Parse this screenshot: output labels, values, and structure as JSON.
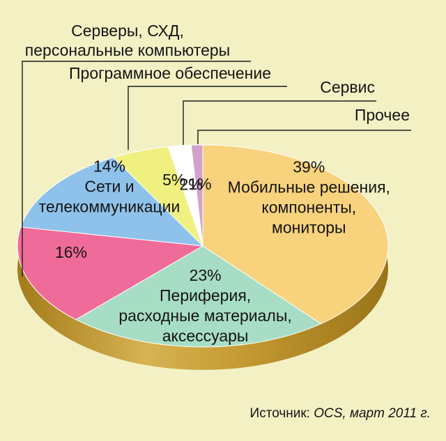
{
  "chart_data": {
    "type": "pie",
    "slices": [
      {
        "pct_label": "39%",
        "label_lines": [
          "Мобильные решения,",
          "компоненты,",
          "мониторы"
        ],
        "value": 39,
        "color": "#f8d27d"
      },
      {
        "pct_label": "23%",
        "label_lines": [
          "Периферия,",
          "расходные материалы,",
          "аксессуары"
        ],
        "value": 23,
        "color": "#a7ddc5"
      },
      {
        "pct_label": "16%",
        "label_lines": [],
        "value": 16,
        "color": "#ef6b9a"
      },
      {
        "pct_label": "14%",
        "label_lines": [
          "Сети и",
          "телекоммуникации"
        ],
        "value": 14,
        "color": "#8ec2ea"
      },
      {
        "pct_label": "5%",
        "label_lines": [],
        "value": 5,
        "color": "#eff07f"
      },
      {
        "pct_label": "2%",
        "label_lines": [],
        "value": 2,
        "color": "#ffffff"
      },
      {
        "pct_label": "1%",
        "label_lines": [],
        "value": 1,
        "color": "#d2a2cc"
      }
    ],
    "callouts": [
      {
        "slice": 2,
        "lines": [
          "Серверы, СХД,",
          "персональные компьютеры"
        ]
      },
      {
        "slice": 4,
        "lines": [
          "Программное обеспечение"
        ]
      },
      {
        "slice": 5,
        "lines": [
          "Сервис"
        ]
      },
      {
        "slice": 6,
        "lines": [
          "Прочее"
        ]
      }
    ],
    "source": {
      "prefix": "Источник: ",
      "italic": "OCS, март 2011 г."
    }
  },
  "colors": {
    "background": "#f3f1c4",
    "rim": "#c9a23f",
    "rim_dark": "#a27d1f"
  }
}
